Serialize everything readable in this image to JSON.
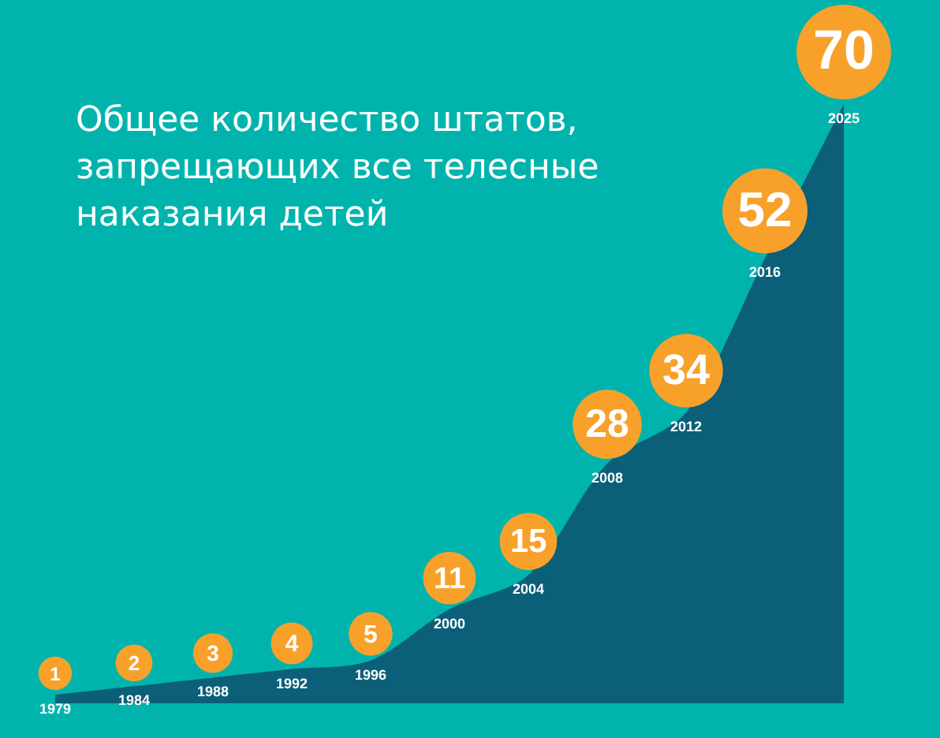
{
  "chart_data": {
    "type": "area",
    "title": "Общее количество штатов, запрещающих все телесные наказания детей",
    "categories": [
      "1979",
      "1984",
      "1988",
      "1992",
      "1996",
      "2000",
      "2004",
      "2008",
      "2012",
      "2016",
      "2025"
    ],
    "values": [
      1,
      2,
      3,
      4,
      5,
      11,
      15,
      28,
      34,
      52,
      70
    ],
    "color": "#0b5f79",
    "colors": [
      "#f7a12b",
      "#f7a12b",
      "#f7a12b",
      "#f7a12b",
      "#f7a12b",
      "#f7a12b",
      "#f7a12b",
      "#f7a12b",
      "#f7a12b",
      "#f7a12b",
      "#f7a12b"
    ],
    "data_labels": true,
    "tick_labels": "x"
  }
}
